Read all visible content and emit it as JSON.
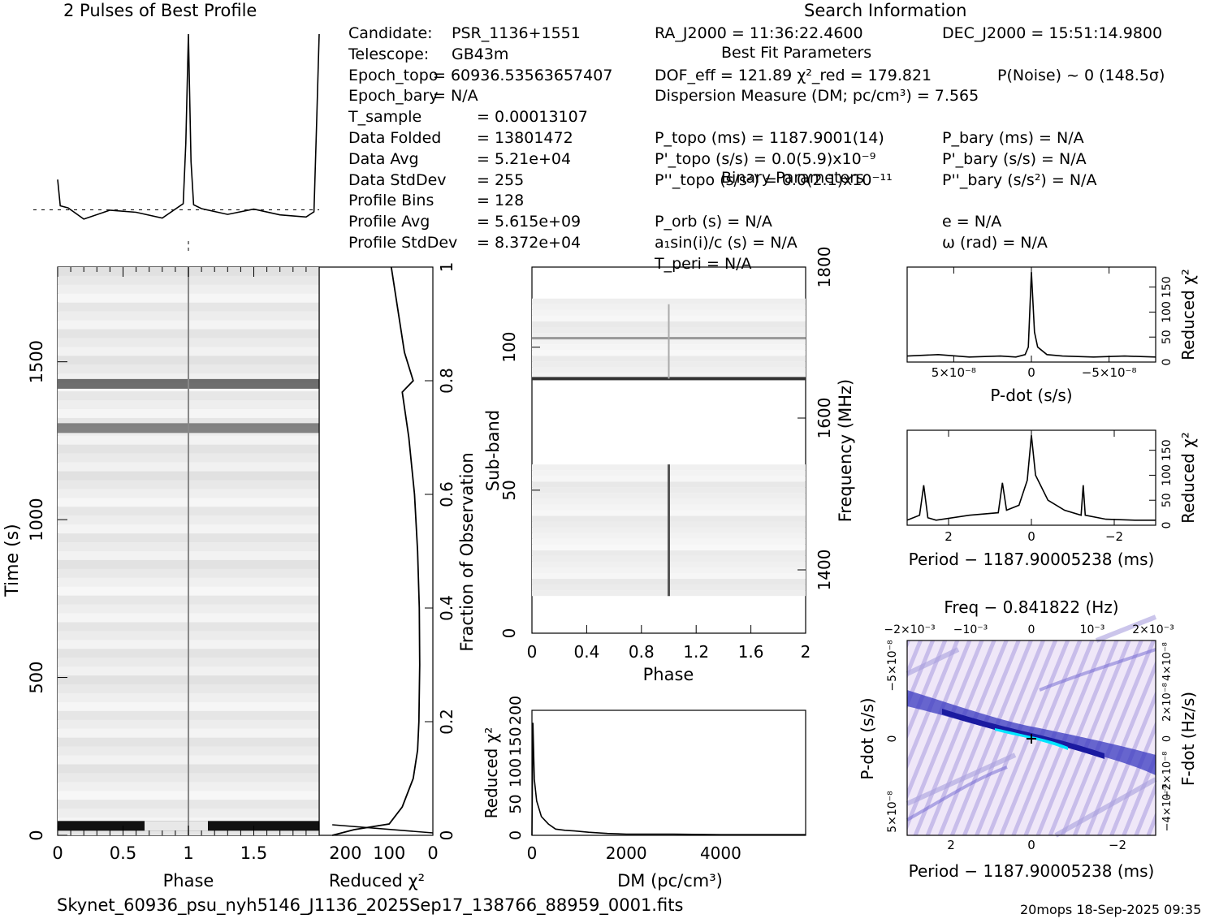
{
  "header": {
    "profile_title": "2 Pulses of Best Profile",
    "search_title": "Search Information",
    "best_fit_title": "Best Fit Parameters",
    "binary_title": "Binary Parameters"
  },
  "info_left": [
    {
      "label": "Candidate:",
      "value": "PSR_1136+1551"
    },
    {
      "label": "Telescope:",
      "value": "GB43m"
    },
    {
      "label": "Epoch_topo",
      "value": "= 60936.53563657407"
    },
    {
      "label": "Epoch_bary",
      "value": "= N/A"
    },
    {
      "label": "T_sample",
      "value": "=   0.00013107"
    },
    {
      "label": "Data Folded",
      "value": "=   13801472"
    },
    {
      "label": "Data Avg",
      "value": "=   5.21e+04"
    },
    {
      "label": "Data StdDev",
      "value": "=   255"
    },
    {
      "label": "Profile Bins",
      "value": "=   128"
    },
    {
      "label": "Profile Avg",
      "value": "=   5.615e+09"
    },
    {
      "label": "Profile StdDev",
      "value": "=   8.372e+04"
    }
  ],
  "info_mid": [
    "RA_J2000 = 11:36:22.4600",
    "DOF_eff = 121.89  χ²_red = 179.821",
    "Dispersion Measure (DM; pc/cm³) = 7.565",
    "P_topo (ms) =  1187.9001(14)",
    "P'_topo (s/s) = 0.0(5.9)x10⁻⁹",
    "P''_topo (s/s²) = 0.0(2.1)x10⁻¹¹",
    "P_orb (s) = N/A",
    "a₁sin(i)/c (s) = N/A",
    "T_peri = N/A"
  ],
  "info_right": [
    "DEC_J2000 = 15:51:14.9800",
    "P(Noise) ~ 0   (148.5σ)",
    "P_bary (ms) = N/A",
    "P'_bary (s/s) = N/A",
    "P''_bary (s/s²) = N/A",
    "e = N/A",
    "ω (rad) = N/A"
  ],
  "footer": {
    "filename": "Skynet_60936_psu_nyh5146_J1136_2025Sep17_138766_88959_0001.fits",
    "stamp": "20mops 18-Sep-2025 09:35"
  },
  "colors": {
    "ink": "#000000",
    "map_blue": "#1a1aa0",
    "map_cyan": "#00ffff",
    "map_bg": "#e6ddf5"
  },
  "chart_data": [
    {
      "type": "line",
      "name": "profile",
      "title": "2 Pulses of Best Profile",
      "xlim": [
        0,
        2
      ],
      "x": [
        0.0,
        0.02,
        0.08,
        0.2,
        0.4,
        0.6,
        0.8,
        0.96,
        0.98,
        1.0,
        1.02,
        1.04,
        1.1,
        1.3,
        1.5,
        1.7,
        1.9,
        1.96,
        1.98,
        2.0
      ],
      "values": [
        0.2,
        0.05,
        0.05,
        0.0,
        0.02,
        0.02,
        0.0,
        0.05,
        0.4,
        1.0,
        0.3,
        0.05,
        0.04,
        0.02,
        0.02,
        0.0,
        0.0,
        0.04,
        0.5,
        1.0
      ],
      "mean_line": 0.02
    },
    {
      "type": "heatmap",
      "name": "time-phase",
      "xlabel": "Phase",
      "ylabel": "Time (s)",
      "x_ticks": [
        "0",
        "0.5",
        "1",
        "1.5"
      ],
      "y_ticks": [
        "0",
        "500",
        "1000",
        "1500"
      ],
      "xlim": [
        0,
        2
      ],
      "ylim": [
        0,
        1800
      ],
      "pulse_phase": 1.0,
      "bright_rows_time_s": [
        30,
        1290,
        1430
      ]
    },
    {
      "type": "line",
      "name": "reduced-chi2-vs-fraction",
      "xlabel": "Reduced χ²",
      "ylabel": "Fraction of Observation",
      "x_ticks": [
        "200",
        "100",
        "0"
      ],
      "y_ticks": [
        "0",
        "0.2",
        "0.4",
        "0.6",
        "0.8",
        "1"
      ],
      "xlim": [
        260,
        0
      ],
      "ylim": [
        0,
        1
      ],
      "fraction": [
        0.0,
        0.01,
        0.02,
        0.05,
        0.1,
        0.15,
        0.2,
        0.3,
        0.4,
        0.5,
        0.6,
        0.7,
        0.78,
        0.8,
        0.85,
        0.9,
        0.95,
        1.0
      ],
      "chi2": [
        230,
        180,
        100,
        70,
        45,
        35,
        32,
        30,
        31,
        35,
        42,
        55,
        70,
        45,
        65,
        75,
        85,
        95
      ]
    },
    {
      "type": "heatmap",
      "name": "subband-phase",
      "xlabel": "Phase",
      "ylabel": "Sub-band",
      "y2label": "Frequency (MHz)",
      "x_ticks": [
        "0",
        "0.4",
        "0.8",
        "1.2",
        "1.6",
        "2"
      ],
      "y_ticks": [
        "0",
        "50",
        "100"
      ],
      "y2_ticks": [
        "1400",
        "1600",
        "1800"
      ],
      "xlim": [
        0,
        2
      ],
      "ylim": [
        0,
        128
      ],
      "empty_band": [
        59,
        89
      ],
      "bright_bands": [
        89,
        103
      ]
    },
    {
      "type": "line",
      "name": "dm-curve",
      "xlabel": "DM (pc/cm³)",
      "ylabel": "Reduced χ²",
      "x_ticks": [
        "0",
        "2000",
        "4000"
      ],
      "y_ticks": [
        "0",
        "50",
        "100",
        "150",
        "200"
      ],
      "xlim": [
        0,
        5800
      ],
      "ylim": [
        0,
        200
      ],
      "x": [
        0,
        20,
        50,
        100,
        200,
        350,
        500,
        700,
        900,
        1200,
        1600,
        2000,
        3000,
        4000,
        5000,
        5800
      ],
      "values": [
        0,
        180,
        90,
        55,
        30,
        18,
        10,
        8,
        7,
        5,
        3,
        2,
        2,
        1,
        1,
        1
      ]
    },
    {
      "type": "line",
      "name": "pdot-curve",
      "xlabel": "P-dot (s/s)",
      "ylabel": "Reduced χ²",
      "x_ticks": [
        "5×10⁻⁸",
        "0",
        "−5×10⁻⁸"
      ],
      "y_ticks": [
        "0",
        "50",
        "100",
        "150"
      ],
      "xlim": [
        8e-08,
        -8e-08
      ],
      "ylim": [
        0,
        190
      ],
      "x": [
        8e-08,
        6e-08,
        4e-08,
        2e-08,
        1e-08,
        4e-09,
        2e-09,
        0,
        -2e-09,
        -4e-09,
        -1e-08,
        -2e-08,
        -4e-08,
        -6e-08,
        -8e-08
      ],
      "values": [
        12,
        15,
        10,
        12,
        10,
        15,
        30,
        180,
        60,
        30,
        15,
        12,
        10,
        12,
        10
      ]
    },
    {
      "type": "line",
      "name": "period-curve",
      "xlabel": "Period − 1187.90005238 (ms)",
      "ylabel": "Reduced χ²",
      "x_ticks": [
        "2",
        "0",
        "−2"
      ],
      "y_ticks": [
        "0",
        "50",
        "100",
        "150"
      ],
      "xlim": [
        3.0,
        -3.0
      ],
      "ylim": [
        0,
        190
      ],
      "x": [
        3.0,
        2.7,
        2.6,
        2.5,
        2.3,
        1.5,
        0.8,
        0.7,
        0.6,
        0.3,
        0.1,
        0.0,
        -0.1,
        -0.4,
        -0.8,
        -1.2,
        -1.25,
        -1.3,
        -1.8,
        -2.5,
        -3.0
      ],
      "values": [
        10,
        20,
        80,
        15,
        10,
        20,
        25,
        85,
        30,
        40,
        90,
        180,
        100,
        50,
        30,
        20,
        80,
        20,
        12,
        10,
        10
      ]
    },
    {
      "type": "heatmap",
      "name": "period-pdot-plane",
      "title": "Freq − 0.841822 (Hz)",
      "xlabel": "Period − 1187.90005238 (ms)",
      "ylabel": "P-dot (s/s)",
      "y2label": "F-dot (Hz/s)",
      "x_ticks": [
        "2",
        "0",
        "−2"
      ],
      "x2_ticks": [
        "−2×10⁻³",
        "−10⁻³",
        "0",
        "10⁻³",
        "2×10⁻³"
      ],
      "y_ticks": [
        "5×10⁻⁸",
        "0",
        "−5×10⁻⁸"
      ],
      "y2_ticks": [
        "−4×10⁻⁸",
        "−2×10⁻⁸",
        "0",
        "2×10⁻⁸",
        "4×10⁻⁸"
      ],
      "xlim": [
        3.0,
        -3.0
      ],
      "best": [
        0,
        0
      ]
    }
  ]
}
